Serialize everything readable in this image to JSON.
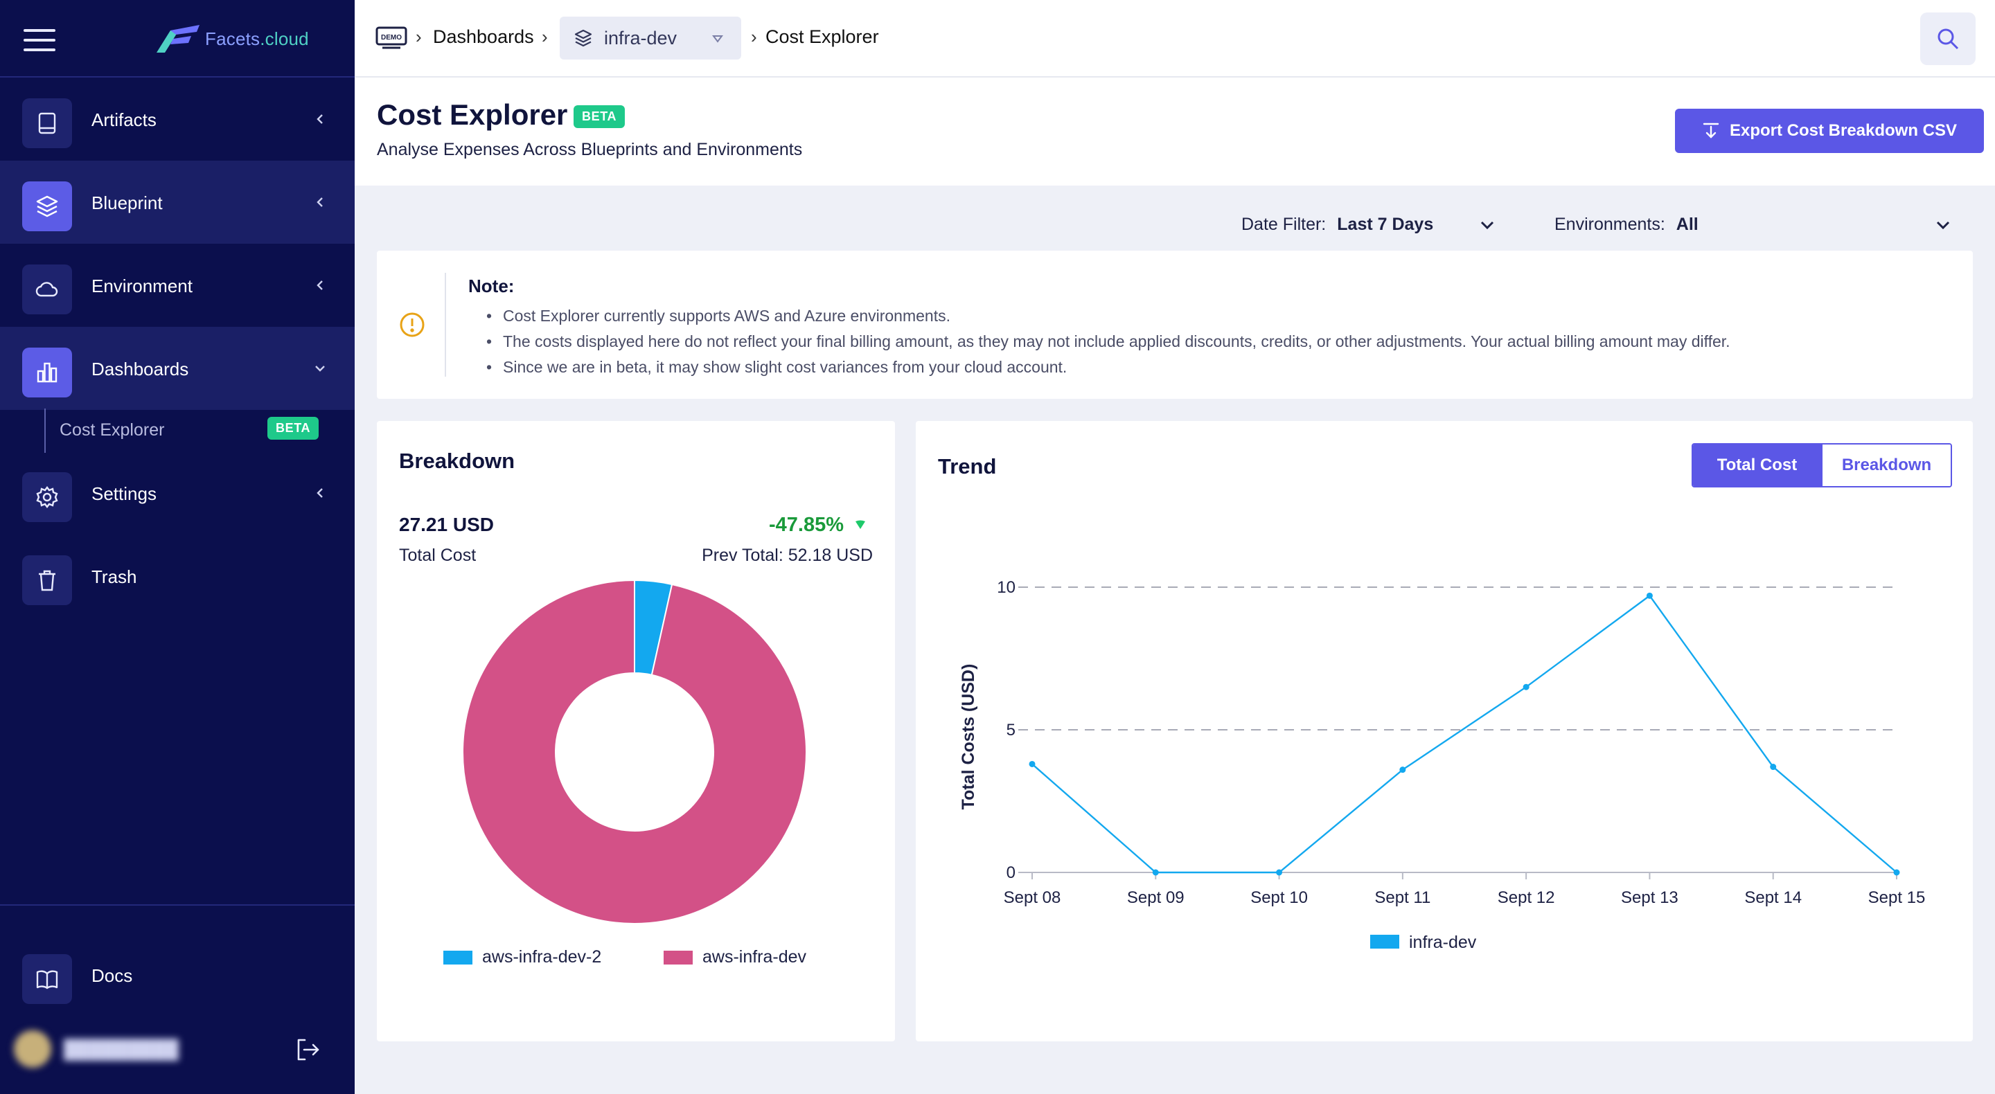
{
  "brand": {
    "name_left": "Facets",
    "name_right": ".cloud"
  },
  "sidebar": {
    "items": [
      {
        "label": "Artifacts"
      },
      {
        "label": "Blueprint"
      },
      {
        "label": "Environment"
      },
      {
        "label": "Dashboards"
      },
      {
        "label": "Settings"
      },
      {
        "label": "Trash"
      }
    ],
    "sub_item": {
      "label": "Cost Explorer",
      "badge": "BETA"
    },
    "docs_label": "Docs"
  },
  "breadcrumb": {
    "demo_badge": "DEMO",
    "dashboards": "Dashboards",
    "environment": "infra-dev",
    "current": "Cost Explorer"
  },
  "page": {
    "title": "Cost Explorer",
    "badge": "BETA",
    "subtitle": "Analyse Expenses Across Blueprints and Environments",
    "export_label": "Export Cost Breakdown CSV"
  },
  "filters": {
    "date_label": "Date Filter:",
    "date_value": "Last 7 Days",
    "env_label": "Environments:",
    "env_value": "All"
  },
  "note": {
    "title": "Note:",
    "items": [
      "Cost Explorer currently supports AWS and Azure environments.",
      "The costs displayed here do not reflect your final billing amount, as they may not include applied discounts, credits, or other adjustments. Your actual billing amount may differ.",
      "Since we are in beta, it may show slight cost variances from your cloud account."
    ]
  },
  "breakdown": {
    "title": "Breakdown",
    "total_value": "27.21 USD",
    "total_label": "Total Cost",
    "change": "-47.85%",
    "prev_total": "Prev Total: 52.18 USD"
  },
  "trend": {
    "title": "Trend",
    "toggle_total": "Total Cost",
    "toggle_breakdown": "Breakdown"
  },
  "colors": {
    "sidebar_bg": "#0b0f4d",
    "accent": "#5b57e6",
    "beta_badge": "#1ec98a",
    "series_blue": "#13a8ef",
    "series_pink": "#d35187",
    "positive_green": "#1a9a3a"
  },
  "chart_data": [
    {
      "type": "pie",
      "donut": true,
      "labels": [
        "aws-infra-dev-2",
        "aws-infra-dev"
      ],
      "values": [
        3.5,
        96.5
      ],
      "colors": [
        "#13a8ef",
        "#d35187"
      ],
      "legend": "bottom"
    },
    {
      "type": "line",
      "x": [
        "Sept 08",
        "Sept 09",
        "Sept 10",
        "Sept 11",
        "Sept 12",
        "Sept 13",
        "Sept 14",
        "Sept 15"
      ],
      "series": [
        {
          "name": "infra-dev",
          "values": [
            3.8,
            0,
            0,
            3.6,
            6.5,
            9.7,
            3.7,
            0
          ],
          "color": "#13a8ef"
        }
      ],
      "ylabel": "Total Costs (USD)",
      "ylim": [
        0,
        10
      ],
      "yticks": [
        0,
        5,
        10
      ],
      "grid": "horizontal-dashed",
      "legend": "bottom"
    }
  ]
}
